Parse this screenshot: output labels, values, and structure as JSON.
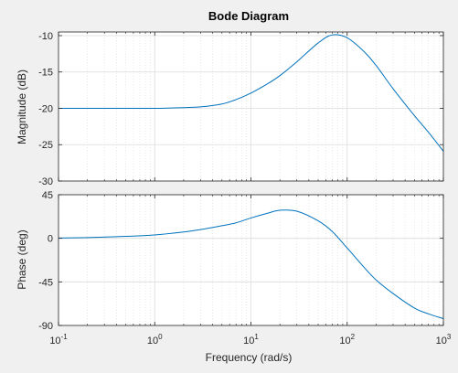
{
  "chart_data": {
    "type": "line",
    "title": "Bode Diagram",
    "xlabel": "Frequency  (rad/s)",
    "xscale": "log",
    "xlim": [
      0.1,
      1000
    ],
    "xtick_values": [
      0.1,
      1,
      10,
      100,
      1000
    ],
    "xtick_labels": [
      {
        "base": "10",
        "exp": "-1"
      },
      {
        "base": "10",
        "exp": "0"
      },
      {
        "base": "10",
        "exp": "1"
      },
      {
        "base": "10",
        "exp": "2"
      },
      {
        "base": "10",
        "exp": "3"
      }
    ],
    "grid": true,
    "line_color": "#0072bd",
    "panels": [
      {
        "name": "magnitude",
        "ylabel": "Magnitude (dB)",
        "ylim": [
          -30,
          -9.5
        ],
        "ytick_values": [
          -30,
          -25,
          -20,
          -15,
          -10
        ],
        "ytick_labels": [
          "-30",
          "-25",
          "-20",
          "-15",
          "-10"
        ],
        "x": [
          0.1,
          0.2,
          0.5,
          1,
          2,
          3,
          5,
          7,
          10,
          15,
          20,
          30,
          50,
          70,
          100,
          150,
          200,
          300,
          500,
          700,
          1000
        ],
        "y": [
          -20,
          -20,
          -20,
          -20,
          -19.9,
          -19.8,
          -19.4,
          -18.8,
          -17.9,
          -16.6,
          -15.5,
          -13.6,
          -11.0,
          -9.9,
          -10.3,
          -12.2,
          -14.1,
          -17.3,
          -21.0,
          -23.3,
          -25.9
        ]
      },
      {
        "name": "phase",
        "ylabel": "Phase (deg)",
        "ylim": [
          -90,
          45
        ],
        "ytick_values": [
          -90,
          -45,
          0,
          45
        ],
        "ytick_labels": [
          "-90",
          "-45",
          "0",
          "45"
        ],
        "x": [
          0.1,
          0.2,
          0.5,
          1,
          2,
          3,
          5,
          7,
          10,
          15,
          20,
          30,
          50,
          70,
          100,
          150,
          200,
          300,
          500,
          700,
          1000
        ],
        "y": [
          0.3,
          0.8,
          2,
          3.5,
          6.5,
          9,
          13,
          16,
          21,
          26,
          29,
          28,
          18,
          7,
          -10,
          -30,
          -43,
          -57,
          -72,
          -78,
          -83
        ]
      }
    ]
  }
}
